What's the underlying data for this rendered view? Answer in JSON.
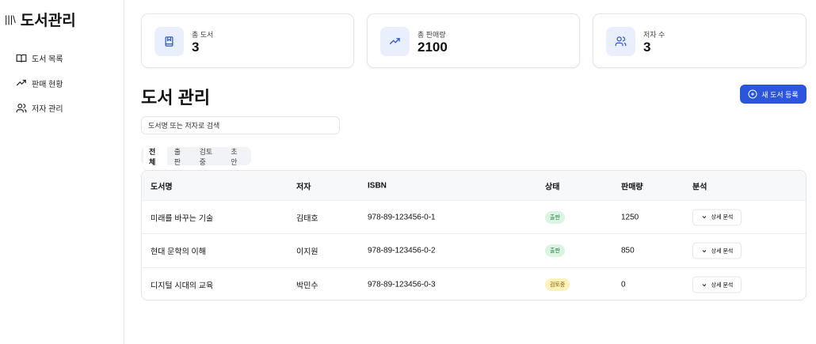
{
  "app": {
    "title": "도서관리",
    "logo_icon": "library-icon"
  },
  "sidebar": {
    "items": [
      {
        "label": "도서 목록",
        "icon": "book-open-icon"
      },
      {
        "label": "판매 현황",
        "icon": "trending-up-icon"
      },
      {
        "label": "저자 관리",
        "icon": "users-icon"
      }
    ]
  },
  "stats": [
    {
      "label": "총 도서",
      "value": "3",
      "icon": "book-icon"
    },
    {
      "label": "총 판매량",
      "value": "2100",
      "icon": "trending-up-icon"
    },
    {
      "label": "저자 수",
      "value": "3",
      "icon": "users-icon"
    }
  ],
  "page": {
    "title": "도서 관리",
    "add_button": "새 도서 등록",
    "search_placeholder": "도서명 또는 저자로 검색"
  },
  "tabs": [
    {
      "label": "전체",
      "active": true
    },
    {
      "label": "출판"
    },
    {
      "label": "검토중"
    },
    {
      "label": "초안"
    }
  ],
  "table": {
    "headers": [
      "도서명",
      "저자",
      "ISBN",
      "상태",
      "판매량",
      "분석"
    ],
    "rows": [
      {
        "title": "미래를 바꾸는 기술",
        "author": "김태호",
        "isbn": "978-89-123456-0-1",
        "status": "출판",
        "sales": "1250",
        "action": "상세 분석"
      },
      {
        "title": "현대 문학의 이해",
        "author": "이지원",
        "isbn": "978-89-123456-0-2",
        "status": "출판",
        "sales": "850",
        "action": "상세 분석"
      },
      {
        "title": "디지털 시대의 교육",
        "author": "박민수",
        "isbn": "978-89-123456-0-3",
        "status": "검토중",
        "sales": "0",
        "action": "상세 분석"
      }
    ]
  },
  "colors": {
    "accent": "#2a56dd",
    "published_bg": "#dcf5e3",
    "published_fg": "#1d7a3d",
    "review_bg": "#fdf2b8",
    "review_fg": "#8a5a00"
  }
}
